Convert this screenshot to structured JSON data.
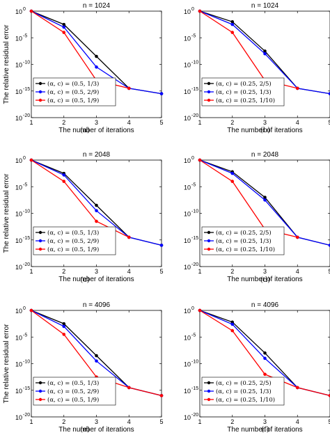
{
  "chart_data": [
    {
      "panel": "(a)",
      "type": "line",
      "title": "n = 1024",
      "xlabel": "The number of iterations",
      "ylabel": "The relative residual error",
      "xlim": [
        1,
        5
      ],
      "ylim_exponent": [
        -20,
        0
      ],
      "y_scale": "log",
      "xticks": [
        "1",
        "2",
        "3",
        "4",
        "5"
      ],
      "yticks": [
        {
          "base": "10",
          "exp": "0"
        },
        {
          "base": "10",
          "exp": "-5"
        },
        {
          "base": "10",
          "exp": "-10"
        },
        {
          "base": "10",
          "exp": "-15"
        },
        {
          "base": "10",
          "exp": "-20"
        }
      ],
      "legend_position": "bottom-left",
      "series": [
        {
          "name": "(α, c) = (0.5, 1/3)",
          "color": "#000000",
          "x": [
            1,
            2,
            3,
            4,
            5
          ],
          "y_exponent": [
            0,
            -2.5,
            -8.5,
            -14.5,
            -15.5
          ]
        },
        {
          "name": "(α, c) = (0.5, 2/9)",
          "color": "#0000ff",
          "x": [
            1,
            2,
            3,
            4,
            5
          ],
          "y_exponent": [
            0,
            -3,
            -10.5,
            -14.5,
            -15.5
          ]
        },
        {
          "name": "(α, c) = (0.5, 1/9)",
          "color": "#ff0000",
          "x": [
            1,
            2,
            3,
            4
          ],
          "y_exponent": [
            0,
            -4,
            -13,
            -14.5
          ]
        }
      ]
    },
    {
      "panel": "(b)",
      "type": "line",
      "title": "n = 1024",
      "xlabel": "The number of iterations",
      "ylabel": "",
      "xlim": [
        1,
        5
      ],
      "ylim_exponent": [
        -20,
        0
      ],
      "y_scale": "log",
      "xticks": [
        "1",
        "2",
        "3",
        "4",
        "5"
      ],
      "yticks": [
        {
          "base": "10",
          "exp": "0"
        },
        {
          "base": "10",
          "exp": "-5"
        },
        {
          "base": "10",
          "exp": "-10"
        },
        {
          "base": "10",
          "exp": "-15"
        },
        {
          "base": "10",
          "exp": "-20"
        }
      ],
      "legend_position": "bottom-left",
      "series": [
        {
          "name": "(α, c) = (0.25, 2/5)",
          "color": "#000000",
          "x": [
            1,
            2,
            3,
            4,
            5
          ],
          "y_exponent": [
            0,
            -2,
            -7.5,
            -14.5,
            -15.5
          ]
        },
        {
          "name": "(α, c) = (0.25, 1/3)",
          "color": "#0000ff",
          "x": [
            1,
            2,
            3,
            4,
            5
          ],
          "y_exponent": [
            0,
            -2.5,
            -8,
            -14.5,
            -15.5
          ]
        },
        {
          "name": "(α, c) = (0.25, 1/10)",
          "color": "#ff0000",
          "x": [
            1,
            2,
            3,
            4
          ],
          "y_exponent": [
            0,
            -4,
            -13,
            -14.5
          ]
        }
      ]
    },
    {
      "panel": "(c)",
      "type": "line",
      "title": "n = 2048",
      "xlabel": "The number of iterations",
      "ylabel": "The relative residual error",
      "xlim": [
        1,
        5
      ],
      "ylim_exponent": [
        -20,
        0
      ],
      "y_scale": "log",
      "xticks": [
        "1",
        "2",
        "3",
        "4",
        "5"
      ],
      "yticks": [
        {
          "base": "10",
          "exp": "0"
        },
        {
          "base": "10",
          "exp": "-5"
        },
        {
          "base": "10",
          "exp": "-10"
        },
        {
          "base": "10",
          "exp": "-15"
        },
        {
          "base": "10",
          "exp": "-20"
        }
      ],
      "legend_position": "bottom-left",
      "series": [
        {
          "name": "(α, c) = (0.5, 1/3)",
          "color": "#000000",
          "x": [
            1,
            2,
            3,
            4,
            5
          ],
          "y_exponent": [
            0,
            -2.5,
            -8.5,
            -14.5,
            -16
          ]
        },
        {
          "name": "(α, c) = (0.5, 2/9)",
          "color": "#0000ff",
          "x": [
            1,
            2,
            3,
            4,
            5
          ],
          "y_exponent": [
            0,
            -2.8,
            -9.5,
            -14.5,
            -16
          ]
        },
        {
          "name": "(α, c) = (0.5, 1/9)",
          "color": "#ff0000",
          "x": [
            1,
            2,
            3,
            4
          ],
          "y_exponent": [
            0,
            -4,
            -11.5,
            -14.5
          ]
        }
      ]
    },
    {
      "panel": "(d)",
      "type": "line",
      "title": "n = 2048",
      "xlabel": "The number of iterations",
      "ylabel": "",
      "xlim": [
        1,
        5
      ],
      "ylim_exponent": [
        -20,
        0
      ],
      "y_scale": "log",
      "xticks": [
        "1",
        "2",
        "3",
        "4",
        "5"
      ],
      "yticks": [
        {
          "base": "10",
          "exp": "0"
        },
        {
          "base": "10",
          "exp": "-5"
        },
        {
          "base": "10",
          "exp": "-10"
        },
        {
          "base": "10",
          "exp": "-15"
        },
        {
          "base": "10",
          "exp": "-20"
        }
      ],
      "legend_position": "bottom-left",
      "series": [
        {
          "name": "(α, c) = (0.25, 2/5)",
          "color": "#000000",
          "x": [
            1,
            2,
            3,
            4,
            5
          ],
          "y_exponent": [
            0,
            -2.2,
            -7,
            -14.5,
            -16
          ]
        },
        {
          "name": "(α, c) = (0.25, 1/3)",
          "color": "#0000ff",
          "x": [
            1,
            2,
            3,
            4,
            5
          ],
          "y_exponent": [
            0,
            -2.5,
            -7.5,
            -14.5,
            -16
          ]
        },
        {
          "name": "(α, c) = (0.25, 1/10)",
          "color": "#ff0000",
          "x": [
            1,
            2,
            3,
            4
          ],
          "y_exponent": [
            0,
            -4,
            -13,
            -14.5
          ]
        }
      ]
    },
    {
      "panel": "(e)",
      "type": "line",
      "title": "n = 4096",
      "xlabel": "The number of iterations",
      "ylabel": "The relative residual error",
      "xlim": [
        1,
        5
      ],
      "ylim_exponent": [
        -20,
        0
      ],
      "y_scale": "log",
      "xticks": [
        "1",
        "2",
        "3",
        "4",
        "5"
      ],
      "yticks": [
        {
          "base": "10",
          "exp": "0"
        },
        {
          "base": "10",
          "exp": "-5"
        },
        {
          "base": "10",
          "exp": "-10"
        },
        {
          "base": "10",
          "exp": "-15"
        },
        {
          "base": "10",
          "exp": "-20"
        }
      ],
      "legend_position": "bottom-left",
      "series": [
        {
          "name": "(α, c) = (0.5, 1/3)",
          "color": "#000000",
          "x": [
            1,
            2,
            3,
            4,
            5
          ],
          "y_exponent": [
            0,
            -2.5,
            -8.5,
            -14.5,
            -16
          ]
        },
        {
          "name": "(α, c) = (0.5, 2/9)",
          "color": "#0000ff",
          "x": [
            1,
            2,
            3,
            4,
            5
          ],
          "y_exponent": [
            0,
            -3,
            -9.5,
            -14.5,
            -16
          ]
        },
        {
          "name": "(α, c) = (0.5, 1/9)",
          "color": "#ff0000",
          "x": [
            1,
            2,
            3,
            4,
            5
          ],
          "y_exponent": [
            0,
            -4.5,
            -12.5,
            -14.5,
            -16
          ]
        }
      ]
    },
    {
      "panel": "(f)",
      "type": "line",
      "title": "n = 4096",
      "xlabel": "The number of iterations",
      "ylabel": "",
      "xlim": [
        1,
        5
      ],
      "ylim_exponent": [
        -20,
        0
      ],
      "y_scale": "log",
      "xticks": [
        "1",
        "2",
        "3",
        "4",
        "5"
      ],
      "yticks": [
        {
          "base": "10",
          "exp": "0"
        },
        {
          "base": "10",
          "exp": "-5"
        },
        {
          "base": "10",
          "exp": "-10"
        },
        {
          "base": "10",
          "exp": "-15"
        },
        {
          "base": "10",
          "exp": "-20"
        }
      ],
      "legend_position": "bottom-left",
      "series": [
        {
          "name": "(α, c) = (0.25, 2/5)",
          "color": "#000000",
          "x": [
            1,
            2,
            3,
            4,
            5
          ],
          "y_exponent": [
            0,
            -2.2,
            -8,
            -14.5,
            -16
          ]
        },
        {
          "name": "(α, c) = (0.25, 1/3)",
          "color": "#0000ff",
          "x": [
            1,
            2,
            3,
            4,
            5
          ],
          "y_exponent": [
            0,
            -2.6,
            -9,
            -14.5,
            -16
          ]
        },
        {
          "name": "(α, c) = (0.25, 1/10)",
          "color": "#ff0000",
          "x": [
            1,
            2,
            3,
            4,
            5
          ],
          "y_exponent": [
            0,
            -3.8,
            -12,
            -14.5,
            -16
          ]
        }
      ]
    }
  ]
}
